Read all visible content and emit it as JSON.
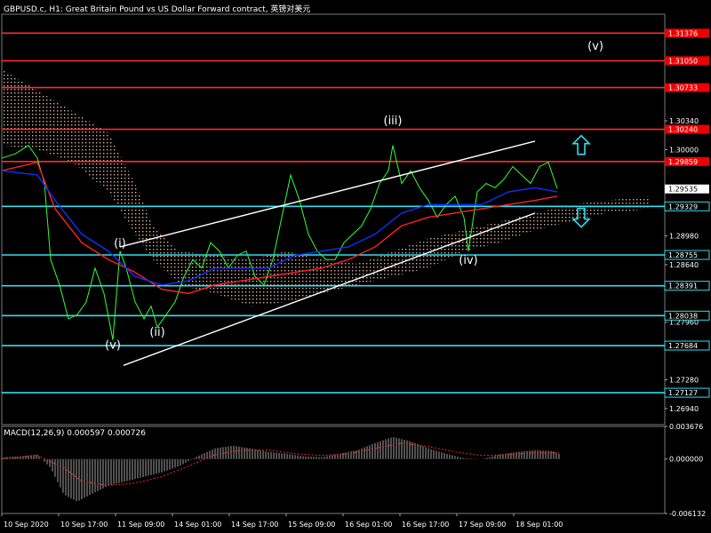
{
  "header": {
    "title": "GBPUSD.c, H1:  Great Britain Pound vs US Dollar Forward contract, 英镑对美元"
  },
  "macd": {
    "title": "MACD(12,26,9) 0.000597 0.000726"
  },
  "chart_data": [
    {
      "type": "line",
      "panel": "price",
      "symbol": "GBPUSD.c",
      "timeframe": "H1",
      "ylim": [
        1.2675,
        1.316
      ],
      "price_ticks": [
        "1.30340",
        "1.30000",
        "1.28980",
        "1.28640",
        "1.27960",
        "1.27280",
        "1.26940"
      ],
      "x_ticks": [
        "10 Sep 2020",
        "10 Sep 17:00",
        "11 Sep 09:00",
        "14 Sep 01:00",
        "14 Sep 17:00",
        "15 Sep 09:00",
        "16 Sep 01:00",
        "16 Sep 17:00",
        "17 Sep 09:00",
        "18 Sep 01:00"
      ],
      "levels": [
        {
          "price": 1.31376,
          "label": "1.31376",
          "color": "#ff2a2a"
        },
        {
          "price": 1.3105,
          "label": "1.31050",
          "color": "#ff2a2a"
        },
        {
          "price": 1.30733,
          "label": "1.30733",
          "color": "#ff2a2a"
        },
        {
          "price": 1.3024,
          "label": "1.30240",
          "color": "#ff2a2a"
        },
        {
          "price": 1.29859,
          "label": "1.29859",
          "color": "#ff2a2a"
        },
        {
          "price": 1.29329,
          "label": "1.29329",
          "color": "#33ddee"
        },
        {
          "price": 1.28755,
          "label": "1.28755",
          "color": "#33ddee"
        },
        {
          "price": 1.28391,
          "label": "1.28391",
          "color": "#33ddee"
        },
        {
          "price": 1.28038,
          "label": "1.28038",
          "color": "#33ddee"
        },
        {
          "price": 1.27684,
          "label": "1.27684",
          "color": "#33ddee"
        },
        {
          "price": 1.27127,
          "label": "1.27127",
          "color": "#33ddee"
        }
      ],
      "current_price": {
        "price": 1.29535,
        "label": "1.29535"
      },
      "wave_labels": [
        {
          "text": "(v)",
          "bar": 125,
          "price": 1.2765
        },
        {
          "text": "(i)",
          "bar": 133,
          "price": 1.2885
        },
        {
          "text": "(ii)",
          "bar": 175,
          "price": 1.278
        },
        {
          "text": "(iii)",
          "bar": 440,
          "price": 1.303
        },
        {
          "text": "(iv)",
          "bar": 525,
          "price": 1.2865
        },
        {
          "text": "(v)",
          "bar": 668,
          "price": 1.3118
        }
      ],
      "series": [
        {
          "role": "price",
          "color": "#33ff33",
          "points": [
            [
              0,
              1.299
            ],
            [
              15,
              1.2995
            ],
            [
              30,
              1.3005
            ],
            [
              40,
              1.299
            ],
            [
              48,
              1.296
            ],
            [
              55,
              1.287
            ],
            [
              65,
              1.284
            ],
            [
              75,
              1.28
            ],
            [
              85,
              1.2805
            ],
            [
              95,
              1.282
            ],
            [
              105,
              1.286
            ],
            [
              115,
              1.283
            ],
            [
              125,
              1.2775
            ],
            [
              133,
              1.288
            ],
            [
              140,
              1.286
            ],
            [
              150,
              1.282
            ],
            [
              160,
              1.28
            ],
            [
              168,
              1.2815
            ],
            [
              175,
              1.279
            ],
            [
              185,
              1.2805
            ],
            [
              195,
              1.282
            ],
            [
              205,
              1.285
            ],
            [
              215,
              1.287
            ],
            [
              225,
              1.286
            ],
            [
              235,
              1.289
            ],
            [
              245,
              1.288
            ],
            [
              255,
              1.286
            ],
            [
              265,
              1.2875
            ],
            [
              275,
              1.288
            ],
            [
              285,
              1.285
            ],
            [
              295,
              1.284
            ],
            [
              305,
              1.287
            ],
            [
              315,
              1.292
            ],
            [
              325,
              1.297
            ],
            [
              335,
              1.294
            ],
            [
              345,
              1.29
            ],
            [
              355,
              1.288
            ],
            [
              365,
              1.287
            ],
            [
              375,
              1.287
            ],
            [
              385,
              1.289
            ],
            [
              395,
              1.29
            ],
            [
              405,
              1.291
            ],
            [
              415,
              1.293
            ],
            [
              425,
              1.296
            ],
            [
              435,
              1.2975
            ],
            [
              440,
              1.3005
            ],
            [
              450,
              1.296
            ],
            [
              460,
              1.2975
            ],
            [
              470,
              1.2955
            ],
            [
              480,
              1.294
            ],
            [
              490,
              1.292
            ],
            [
              500,
              1.2935
            ],
            [
              510,
              1.2945
            ],
            [
              520,
              1.292
            ],
            [
              525,
              1.288
            ],
            [
              535,
              1.295
            ],
            [
              545,
              1.296
            ],
            [
              555,
              1.2955
            ],
            [
              565,
              1.2965
            ],
            [
              575,
              1.298
            ],
            [
              585,
              1.297
            ],
            [
              595,
              1.296
            ],
            [
              605,
              1.298
            ],
            [
              615,
              1.2985
            ],
            [
              625,
              1.2954
            ]
          ]
        },
        {
          "role": "moving-average-red",
          "color": "#ff2020",
          "points": [
            [
              0,
              1.2975
            ],
            [
              40,
              1.2985
            ],
            [
              60,
              1.293
            ],
            [
              90,
              1.289
            ],
            [
              120,
              1.287
            ],
            [
              150,
              1.2855
            ],
            [
              180,
              1.2835
            ],
            [
              210,
              1.283
            ],
            [
              240,
              1.284
            ],
            [
              270,
              1.2845
            ],
            [
              300,
              1.285
            ],
            [
              330,
              1.2855
            ],
            [
              360,
              1.286
            ],
            [
              390,
              1.287
            ],
            [
              420,
              1.2885
            ],
            [
              450,
              1.291
            ],
            [
              480,
              1.292
            ],
            [
              510,
              1.2925
            ],
            [
              540,
              1.293
            ],
            [
              570,
              1.2935
            ],
            [
              600,
              1.294
            ],
            [
              625,
              1.2945
            ]
          ]
        },
        {
          "role": "moving-average-blue",
          "color": "#1030ff",
          "points": [
            [
              0,
              1.2975
            ],
            [
              40,
              1.297
            ],
            [
              60,
              1.294
            ],
            [
              90,
              1.29
            ],
            [
              120,
              1.288
            ],
            [
              150,
              1.285
            ],
            [
              180,
              1.284
            ],
            [
              210,
              1.2845
            ],
            [
              240,
              1.286
            ],
            [
              270,
              1.286
            ],
            [
              300,
              1.286
            ],
            [
              330,
              1.2875
            ],
            [
              360,
              1.288
            ],
            [
              390,
              1.2885
            ],
            [
              420,
              1.29
            ],
            [
              450,
              1.2925
            ],
            [
              480,
              1.2935
            ],
            [
              510,
              1.2935
            ],
            [
              540,
              1.2935
            ],
            [
              570,
              1.295
            ],
            [
              600,
              1.2955
            ],
            [
              625,
              1.295
            ]
          ]
        },
        {
          "role": "trend-channel-upper",
          "color": "#ffffff",
          "points": [
            [
              133,
              1.2885
            ],
            [
              600,
              1.301
            ]
          ]
        },
        {
          "role": "trend-channel-lower",
          "color": "#ffffff",
          "points": [
            [
              137,
              1.2745
            ],
            [
              600,
              1.2925
            ]
          ]
        }
      ],
      "cloud": {
        "color": "#ffd0c0",
        "upper": [
          [
            0,
            1.3095
          ],
          [
            40,
            1.307
          ],
          [
            80,
            1.3045
          ],
          [
            120,
            1.302
          ],
          [
            150,
            1.296
          ],
          [
            170,
            1.291
          ],
          [
            200,
            1.288
          ],
          [
            240,
            1.2875
          ],
          [
            280,
            1.287
          ],
          [
            320,
            1.288
          ],
          [
            360,
            1.287
          ],
          [
            400,
            1.2865
          ],
          [
            440,
            1.288
          ],
          [
            480,
            1.2895
          ],
          [
            520,
            1.2905
          ],
          [
            560,
            1.2915
          ],
          [
            600,
            1.2925
          ],
          [
            640,
            1.2935
          ],
          [
            680,
            1.294
          ],
          [
            730,
            1.2945
          ]
        ],
        "lower": [
          [
            0,
            1.3005
          ],
          [
            40,
            1.3
          ],
          [
            80,
            1.2985
          ],
          [
            120,
            1.295
          ],
          [
            150,
            1.29
          ],
          [
            170,
            1.287
          ],
          [
            200,
            1.284
          ],
          [
            240,
            1.283
          ],
          [
            280,
            1.2815
          ],
          [
            320,
            1.282
          ],
          [
            360,
            1.283
          ],
          [
            400,
            1.284
          ],
          [
            440,
            1.285
          ],
          [
            480,
            1.286
          ],
          [
            520,
            1.288
          ],
          [
            560,
            1.289
          ],
          [
            600,
            1.2905
          ],
          [
            640,
            1.2915
          ],
          [
            680,
            1.2925
          ],
          [
            730,
            1.293
          ]
        ]
      },
      "arrows": [
        {
          "direction": "up",
          "bar": 652,
          "price": 1.3005,
          "color": "#33ddee"
        },
        {
          "direction": "down",
          "bar": 652,
          "price": 1.292,
          "color": "#33ddee"
        }
      ]
    },
    {
      "type": "bar",
      "panel": "macd",
      "ylim": [
        -0.006132,
        0.003676
      ],
      "ticks": [
        "0.003676",
        "0.000000",
        "-0.006132"
      ],
      "histogram": [
        [
          0,
          0.0002
        ],
        [
          20,
          0.0003
        ],
        [
          40,
          0.0005
        ],
        [
          55,
          -0.001
        ],
        [
          70,
          -0.004
        ],
        [
          85,
          -0.0048
        ],
        [
          100,
          -0.004
        ],
        [
          120,
          -0.003
        ],
        [
          140,
          -0.0025
        ],
        [
          160,
          -0.002
        ],
        [
          180,
          -0.0015
        ],
        [
          200,
          -0.0008
        ],
        [
          220,
          0.0003
        ],
        [
          240,
          0.0012
        ],
        [
          260,
          0.0015
        ],
        [
          280,
          0.0012
        ],
        [
          300,
          0.0008
        ],
        [
          320,
          0.0006
        ],
        [
          340,
          0.0003
        ],
        [
          360,
          0.0002
        ],
        [
          380,
          0.0006
        ],
        [
          400,
          0.001
        ],
        [
          420,
          0.0018
        ],
        [
          440,
          0.0025
        ],
        [
          460,
          0.002
        ],
        [
          480,
          0.0012
        ],
        [
          500,
          0.0006
        ],
        [
          520,
          0.0001
        ],
        [
          540,
          0.0
        ],
        [
          560,
          0.0005
        ],
        [
          580,
          0.0008
        ],
        [
          600,
          0.001
        ],
        [
          620,
          0.0009
        ],
        [
          627,
          0.0006
        ]
      ],
      "signal": [
        [
          0,
          0.0
        ],
        [
          40,
          0.0004
        ],
        [
          70,
          -0.001
        ],
        [
          90,
          -0.0025
        ],
        [
          120,
          -0.003
        ],
        [
          150,
          -0.0027
        ],
        [
          180,
          -0.002
        ],
        [
          210,
          -0.0008
        ],
        [
          240,
          0.0005
        ],
        [
          270,
          0.001
        ],
        [
          300,
          0.001
        ],
        [
          330,
          0.0006
        ],
        [
          360,
          0.0004
        ],
        [
          390,
          0.0006
        ],
        [
          420,
          0.0012
        ],
        [
          450,
          0.0018
        ],
        [
          480,
          0.0014
        ],
        [
          510,
          0.0008
        ],
        [
          540,
          0.0004
        ],
        [
          570,
          0.0005
        ],
        [
          600,
          0.0007
        ],
        [
          627,
          0.0007
        ]
      ]
    }
  ]
}
